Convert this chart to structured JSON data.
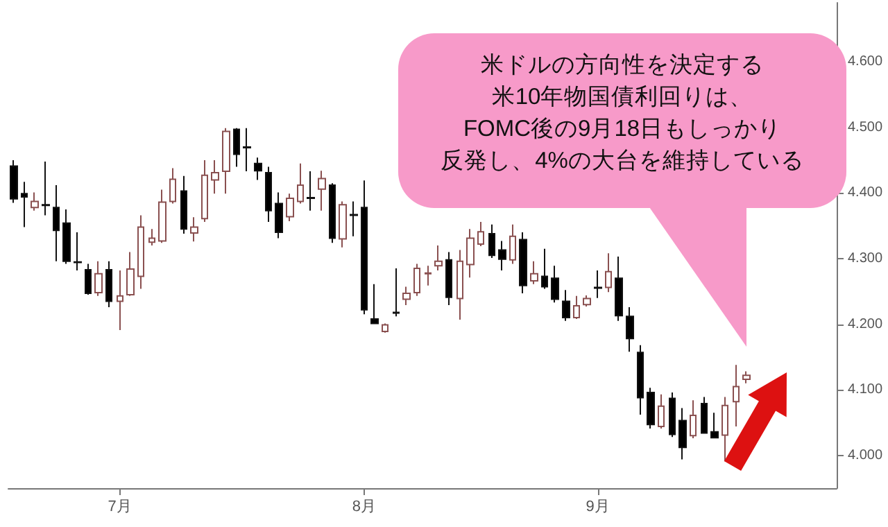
{
  "chart_data": {
    "type": "candlestick",
    "categories": [
      null,
      null,
      null,
      null,
      null,
      null,
      null,
      null,
      null,
      null,
      "7月",
      null,
      null,
      null,
      null,
      null,
      null,
      null,
      null,
      null,
      null,
      null,
      null,
      null,
      null,
      null,
      null,
      null,
      null,
      null,
      null,
      null,
      null,
      "8月",
      null,
      null,
      null,
      null,
      null,
      null,
      null,
      null,
      null,
      null,
      null,
      null,
      null,
      null,
      null,
      null,
      null,
      null,
      null,
      null,
      null,
      "9月",
      null,
      null,
      null,
      null,
      null,
      null,
      null,
      null,
      null,
      null,
      null,
      null,
      null,
      null,
      null,
      null,
      null,
      null,
      null,
      null,
      null,
      null
    ],
    "ohlc": [
      [
        4.441,
        4.45,
        4.385,
        4.391
      ],
      [
        4.399,
        4.417,
        4.348,
        4.394
      ],
      [
        4.378,
        4.401,
        4.373,
        4.387
      ],
      [
        4.382,
        4.448,
        4.366,
        4.381
      ],
      [
        4.378,
        4.412,
        4.296,
        4.343
      ],
      [
        4.354,
        4.375,
        4.292,
        4.296
      ],
      [
        4.295,
        4.34,
        4.282,
        4.294
      ],
      [
        4.283,
        4.292,
        4.245,
        4.247
      ],
      [
        4.248,
        4.296,
        4.243,
        4.277
      ],
      [
        4.283,
        4.296,
        4.226,
        4.235
      ],
      [
        4.235,
        4.282,
        4.191,
        4.243
      ],
      [
        4.245,
        4.31,
        4.243,
        4.284
      ],
      [
        4.273,
        4.366,
        4.254,
        4.348
      ],
      [
        4.325,
        4.345,
        4.32,
        4.331
      ],
      [
        4.327,
        4.405,
        4.324,
        4.386
      ],
      [
        4.387,
        4.438,
        4.384,
        4.421
      ],
      [
        4.403,
        4.426,
        4.338,
        4.345
      ],
      [
        4.339,
        4.363,
        4.326,
        4.348
      ],
      [
        4.361,
        4.45,
        4.356,
        4.427
      ],
      [
        4.42,
        4.45,
        4.399,
        4.431
      ],
      [
        4.433,
        4.499,
        4.399,
        4.494
      ],
      [
        4.497,
        4.499,
        4.44,
        4.459
      ],
      [
        4.47,
        4.499,
        4.433,
        4.469
      ],
      [
        4.445,
        4.454,
        4.42,
        4.434
      ],
      [
        4.431,
        4.44,
        4.356,
        4.373
      ],
      [
        4.384,
        4.401,
        4.331,
        4.34
      ],
      [
        4.364,
        4.399,
        4.357,
        4.392
      ],
      [
        4.387,
        4.445,
        4.384,
        4.412
      ],
      [
        4.393,
        4.433,
        4.373,
        4.392
      ],
      [
        4.406,
        4.434,
        4.373,
        4.422
      ],
      [
        4.412,
        4.415,
        4.324,
        4.331
      ],
      [
        4.33,
        4.387,
        4.317,
        4.382
      ],
      [
        4.367,
        4.387,
        4.334,
        4.366
      ],
      [
        4.378,
        4.419,
        4.215,
        4.222
      ],
      [
        4.208,
        4.261,
        4.2,
        4.201
      ],
      [
        4.189,
        4.201,
        4.187,
        4.199
      ],
      [
        4.218,
        4.285,
        4.212,
        4.217
      ],
      [
        4.238,
        4.257,
        4.229,
        4.247
      ],
      [
        4.248,
        4.292,
        4.243,
        4.285
      ],
      [
        4.277,
        4.289,
        4.259,
        4.278
      ],
      [
        4.289,
        4.32,
        4.282,
        4.296
      ],
      [
        4.298,
        4.31,
        4.229,
        4.241
      ],
      [
        4.239,
        4.313,
        4.207,
        4.296
      ],
      [
        4.291,
        4.345,
        4.271,
        4.331
      ],
      [
        4.322,
        4.356,
        4.319,
        4.341
      ],
      [
        4.338,
        4.352,
        4.301,
        4.305
      ],
      [
        4.313,
        4.327,
        4.282,
        4.299
      ],
      [
        4.298,
        4.352,
        4.292,
        4.334
      ],
      [
        4.329,
        4.34,
        4.247,
        4.259
      ],
      [
        4.266,
        4.296,
        4.261,
        4.277
      ],
      [
        4.273,
        4.315,
        4.254,
        4.257
      ],
      [
        4.27,
        4.289,
        4.233,
        4.238
      ],
      [
        4.235,
        4.252,
        4.205,
        4.21
      ],
      [
        4.21,
        4.243,
        4.208,
        4.228
      ],
      [
        4.23,
        4.244,
        4.227,
        4.239
      ],
      [
        4.256,
        4.282,
        4.24,
        4.255
      ],
      [
        4.256,
        4.308,
        4.249,
        4.28
      ],
      [
        4.27,
        4.303,
        4.205,
        4.213
      ],
      [
        4.212,
        4.226,
        4.158,
        4.178
      ],
      [
        4.157,
        4.168,
        4.062,
        4.088
      ],
      [
        4.096,
        4.103,
        4.041,
        4.047
      ],
      [
        4.044,
        4.093,
        4.041,
        4.075
      ],
      [
        4.087,
        4.096,
        4.028,
        4.032
      ],
      [
        4.053,
        4.072,
        3.994,
        4.012
      ],
      [
        4.03,
        4.084,
        4.026,
        4.061
      ],
      [
        4.079,
        4.089,
        4.033,
        4.034
      ],
      [
        4.036,
        4.065,
        4.026,
        4.027
      ],
      [
        4.031,
        4.089,
        3.991,
        4.076
      ],
      [
        4.082,
        4.138,
        4.044,
        4.105
      ],
      [
        4.116,
        4.128,
        4.11,
        4.122
      ],
      null,
      null,
      null,
      null,
      null,
      null,
      null,
      null
    ],
    "ylim": [
      3.95,
      4.69
    ],
    "yticks": [
      {
        "value": 4,
        "label": "4.000"
      },
      {
        "value": 4.1,
        "label": "4.100"
      },
      {
        "value": 4.2,
        "label": "4.200"
      },
      {
        "value": 4.3,
        "label": "4.300"
      },
      {
        "value": 4.4,
        "label": "4.400"
      },
      {
        "value": 4.5,
        "label": "4.500"
      },
      {
        "value": 4.6,
        "label": "4.600"
      }
    ],
    "annotations": [
      "米ドルの方向性を決定する",
      "米10年物国債利回りは、",
      "FOMC後の9月18日もしっかり",
      "反発し、4%の大台を維持している"
    ]
  }
}
